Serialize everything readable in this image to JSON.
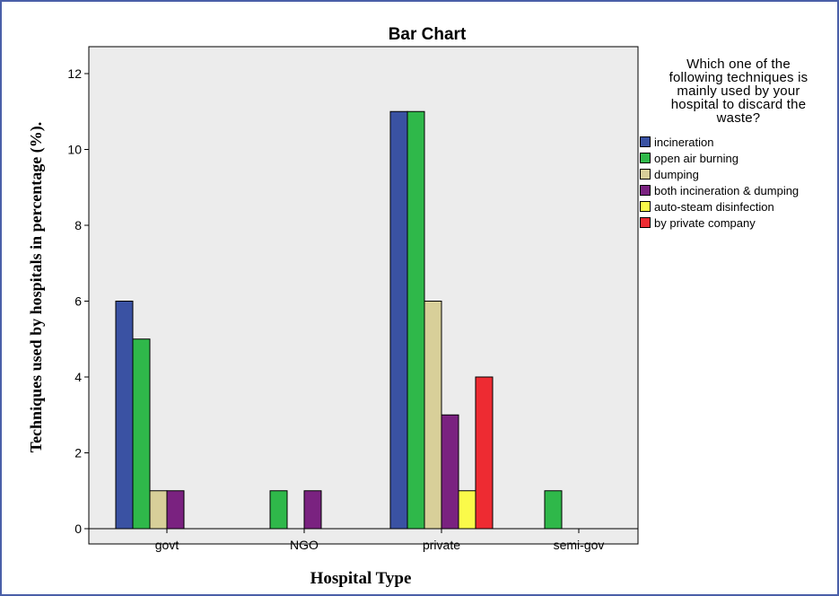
{
  "chart_data": {
    "type": "bar",
    "title": "Bar Chart",
    "xlabel": "Hospital Type",
    "ylabel": "Techniques used by hospitals in percentage (%).",
    "categories": [
      "govt",
      "NGO",
      "private",
      "semi-gov"
    ],
    "ylim": [
      0,
      12
    ],
    "yticks": [
      0,
      2,
      4,
      6,
      8,
      10,
      12
    ],
    "grid": false,
    "legend": {
      "title": "Which one of the\nfollowing techniques is\nmainly used by your\nhospital to discard the\nwaste?",
      "position": "right"
    },
    "series": [
      {
        "name": "incineration",
        "color": "#3a52a3",
        "values": [
          6,
          0,
          11,
          0
        ]
      },
      {
        "name": "open air burning",
        "color": "#2fb84a",
        "values": [
          5,
          1,
          11,
          1
        ]
      },
      {
        "name": "dumping",
        "color": "#d8cf99",
        "values": [
          1,
          0,
          6,
          0
        ]
      },
      {
        "name": "both incineration & dumping",
        "color": "#7a2280",
        "values": [
          1,
          1,
          3,
          0
        ]
      },
      {
        "name": "auto-steam disinfection",
        "color": "#fafa4a",
        "values": [
          0,
          0,
          1,
          0
        ]
      },
      {
        "name": "by private company",
        "color": "#ee2b32",
        "values": [
          0,
          0,
          4,
          0
        ]
      }
    ]
  }
}
